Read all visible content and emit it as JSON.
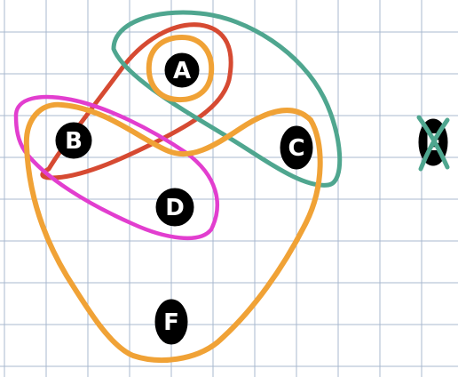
{
  "grid": {
    "color": "#a9b8cf",
    "background": "#ffffff"
  },
  "nodes": [
    {
      "id": "A",
      "label": "A"
    },
    {
      "id": "B",
      "label": "B"
    },
    {
      "id": "C",
      "label": "C"
    },
    {
      "id": "D",
      "label": "D"
    },
    {
      "id": "E",
      "label": "E",
      "crossed_out": true
    },
    {
      "id": "F",
      "label": "F"
    }
  ],
  "groups": [
    {
      "id": "orange-a",
      "members": [
        "A"
      ],
      "color": "#f0a236"
    },
    {
      "id": "red-ab",
      "members": [
        "A",
        "B"
      ],
      "color": "#d64a32"
    },
    {
      "id": "teal-ac",
      "members": [
        "A",
        "C"
      ],
      "color": "#4fa68f"
    },
    {
      "id": "magenta-bd",
      "members": [
        "B",
        "D"
      ],
      "color": "#e23ecf"
    },
    {
      "id": "orange-bcdf",
      "members": [
        "B",
        "C",
        "D",
        "F"
      ],
      "color": "#f0a236"
    }
  ],
  "cross_color": "#4fa68f",
  "node_fill": "#000000"
}
